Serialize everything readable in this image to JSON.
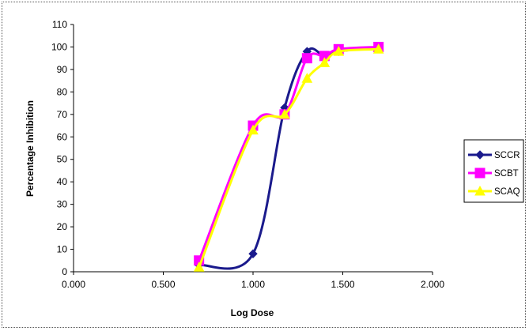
{
  "chart_data": {
    "type": "line",
    "title": "",
    "xlabel": "Log Dose",
    "ylabel": "Percentage Inhibition",
    "xlim": [
      0,
      2
    ],
    "ylim": [
      0,
      110
    ],
    "x_ticks": [
      "0.000",
      "0.500",
      "1.000",
      "1.500",
      "2.000"
    ],
    "y_ticks": [
      "0",
      "10",
      "20",
      "30",
      "40",
      "50",
      "60",
      "70",
      "80",
      "90",
      "100",
      "110"
    ],
    "grid": false,
    "legend_position": "right",
    "series": [
      {
        "name": "SCCR",
        "color": "#1a1a8c",
        "marker": "diamond",
        "x": [
          0.699,
          1.0,
          1.176,
          1.301,
          1.398,
          1.477,
          1.699
        ],
        "values": [
          3,
          8,
          73,
          98,
          96,
          98,
          100
        ]
      },
      {
        "name": "SCBT",
        "color": "#ff00ff",
        "marker": "square",
        "x": [
          0.699,
          1.0,
          1.176,
          1.301,
          1.398,
          1.477,
          1.699
        ],
        "values": [
          5,
          65,
          70,
          95,
          96,
          99,
          100
        ]
      },
      {
        "name": "SCAQ",
        "color": "#ffff00",
        "marker": "triangle",
        "x": [
          0.699,
          1.0,
          1.176,
          1.301,
          1.398,
          1.477,
          1.699
        ],
        "values": [
          2,
          63,
          70,
          86,
          93,
          98,
          99
        ]
      }
    ]
  }
}
